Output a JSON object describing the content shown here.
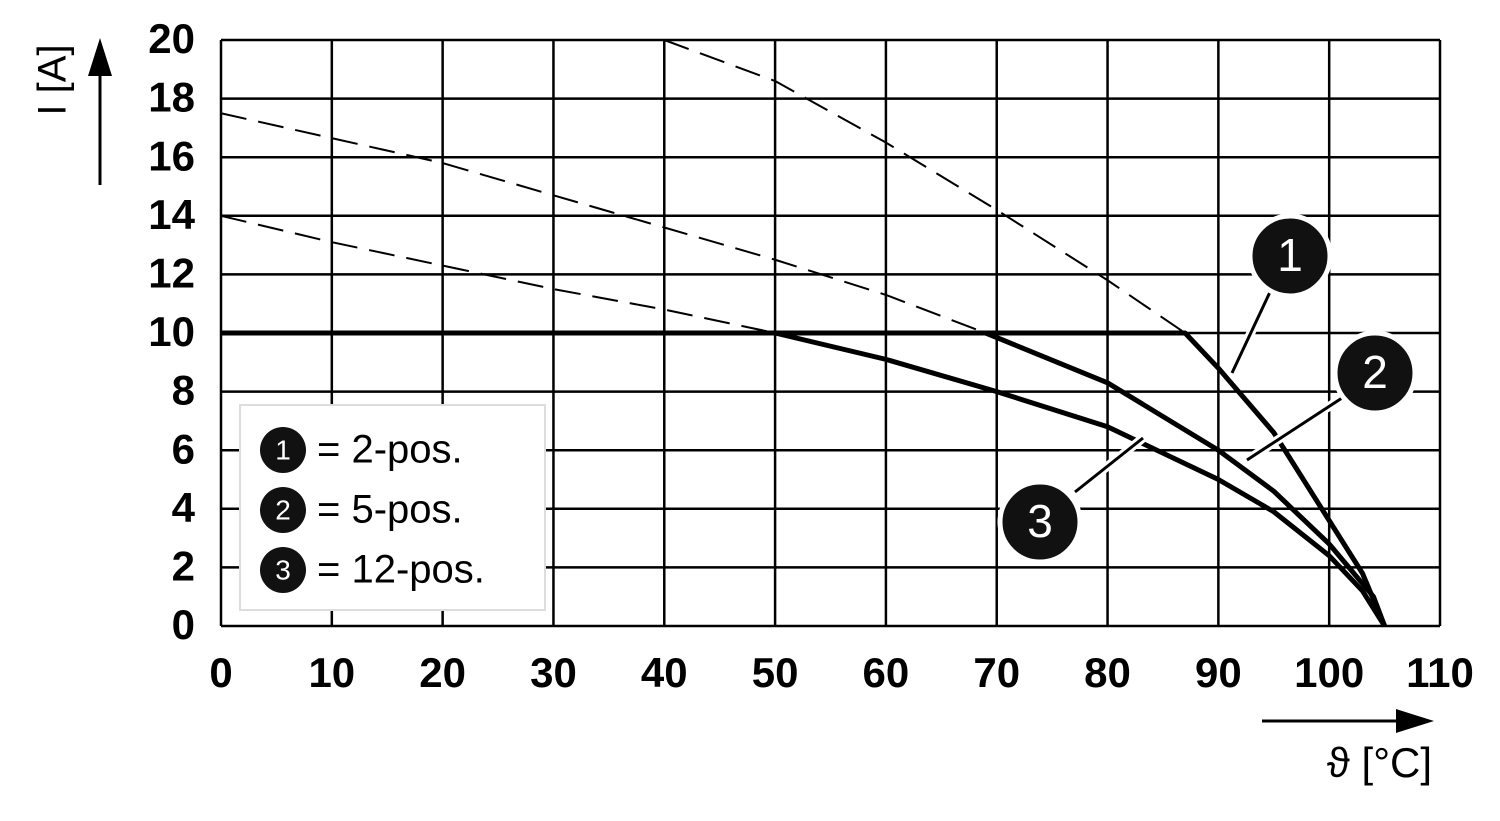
{
  "chart_data": {
    "type": "line",
    "ylabel": "I [A]",
    "xlabel": "ϑ [°C]",
    "xlim": [
      0,
      110
    ],
    "xticks": [
      0,
      10,
      20,
      30,
      40,
      50,
      60,
      70,
      80,
      90,
      100,
      110
    ],
    "ylim": [
      0,
      20
    ],
    "yticks": [
      0,
      2,
      4,
      6,
      8,
      10,
      12,
      14,
      16,
      18,
      20
    ],
    "grid": true,
    "series": [
      {
        "name": "= 2-pos.",
        "marker": "1",
        "color": "#000000",
        "dashed": false,
        "x": [
          0,
          87,
          90,
          95,
          100,
          103,
          105
        ],
        "values": [
          10,
          10,
          8.8,
          6.6,
          3.6,
          1.8,
          0
        ]
      },
      {
        "name": "= 5-pos.",
        "marker": "2",
        "color": "#000000",
        "dashed": false,
        "x": [
          69,
          80,
          90,
          95,
          100,
          104,
          105
        ],
        "values": [
          10,
          8.3,
          6.0,
          4.6,
          2.8,
          1,
          0
        ]
      },
      {
        "name": "= 12-pos.",
        "marker": "3",
        "color": "#000000",
        "dashed": false,
        "x": [
          50,
          60,
          70,
          80,
          90,
          95,
          100,
          103,
          105
        ],
        "values": [
          10,
          9.1,
          8.0,
          6.8,
          5.0,
          3.9,
          2.4,
          1.2,
          0
        ]
      },
      {
        "color": "#000000",
        "dashed": true,
        "x": [
          40,
          50,
          60,
          70,
          80,
          87
        ],
        "values": [
          20,
          18.6,
          16.5,
          14.2,
          11.8,
          10
        ]
      },
      {
        "color": "#000000",
        "dashed": true,
        "x": [
          0,
          20,
          30,
          40,
          50,
          60,
          69
        ],
        "values": [
          17.5,
          15.8,
          14.7,
          13.6,
          12.5,
          11.3,
          10
        ]
      },
      {
        "color": "#000000",
        "dashed": true,
        "x": [
          0,
          10,
          20,
          30,
          40,
          50
        ],
        "values": [
          14,
          13.1,
          12.3,
          11.5,
          10.8,
          10
        ]
      }
    ]
  }
}
